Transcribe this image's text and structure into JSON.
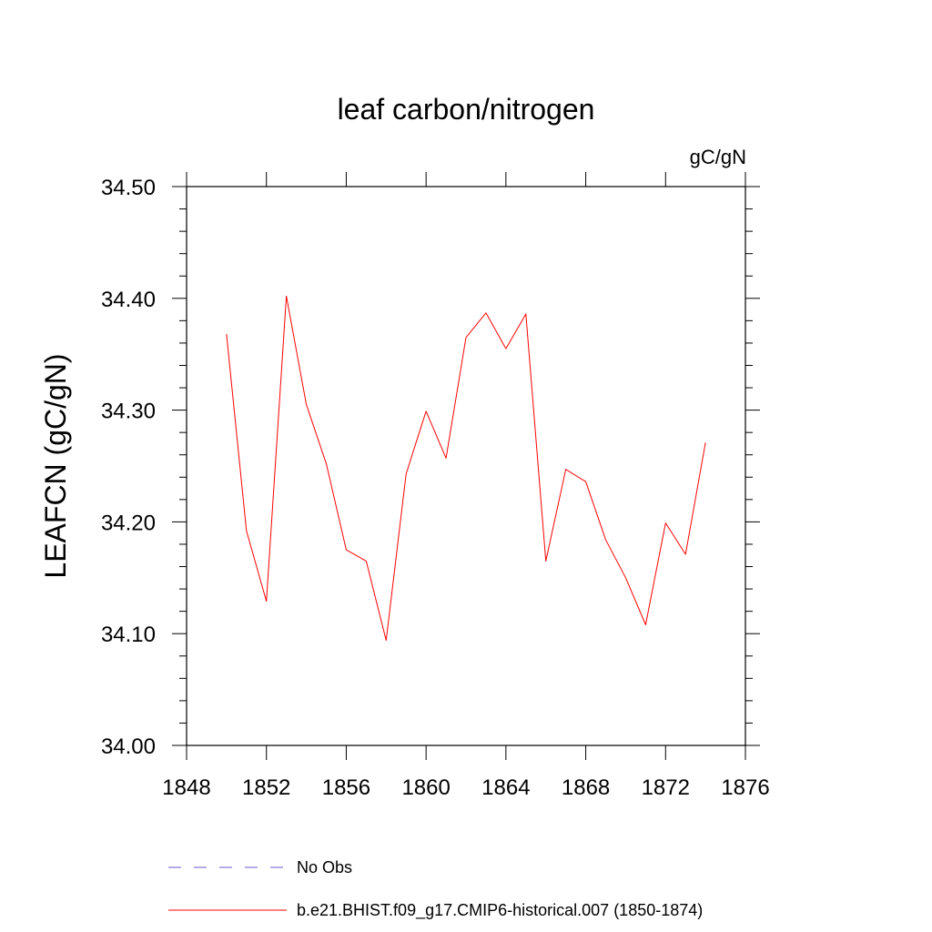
{
  "chart_data": {
    "type": "line",
    "title": "leaf carbon/nitrogen",
    "units_label": "gC/gN",
    "ylabel": "LEAFCN  (gC/gN)",
    "xlabel": "",
    "xlim": [
      1848,
      1876
    ],
    "ylim": [
      34.0,
      34.5
    ],
    "x_major_ticks": [
      1848,
      1852,
      1856,
      1860,
      1864,
      1868,
      1872,
      1876
    ],
    "x_tick_labels": [
      "1848",
      "1852",
      "1856",
      "1860",
      "1864",
      "1868",
      "1872",
      "1876"
    ],
    "y_major_ticks": [
      34.0,
      34.1,
      34.2,
      34.3,
      34.4,
      34.5
    ],
    "y_tick_labels": [
      "34.00",
      "34.10",
      "34.20",
      "34.30",
      "34.40",
      "34.50"
    ],
    "grid": false,
    "legend_position": "bottom",
    "series": [
      {
        "name": "b.e21.BHIST.f09_g17.CMIP6-historical.007 (1850-1874)",
        "color": "#ff0000",
        "style": "solid",
        "x": [
          1850,
          1851,
          1852,
          1853,
          1854,
          1855,
          1856,
          1857,
          1858,
          1859,
          1860,
          1861,
          1862,
          1863,
          1864,
          1865,
          1866,
          1867,
          1868,
          1869,
          1870,
          1871,
          1872,
          1873,
          1874
        ],
        "y": [
          34.368,
          34.192,
          34.129,
          34.402,
          34.305,
          34.252,
          34.175,
          34.165,
          34.094,
          34.243,
          34.299,
          34.257,
          34.365,
          34.387,
          34.355,
          34.386,
          34.165,
          34.247,
          34.236,
          34.184,
          34.15,
          34.108,
          34.199,
          34.171,
          34.271
        ]
      }
    ],
    "legend": [
      {
        "label": "No Obs",
        "color": "#6a5acd",
        "style": "dashed"
      },
      {
        "label": "b.e21.BHIST.f09_g17.CMIP6-historical.007 (1850-1874)",
        "color": "#ff0000",
        "style": "solid"
      }
    ]
  }
}
